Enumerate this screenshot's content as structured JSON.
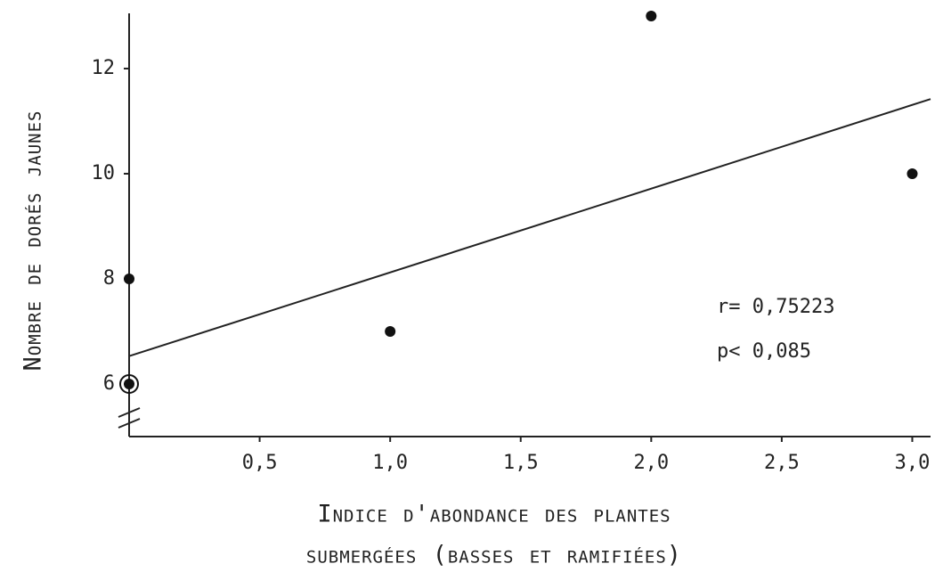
{
  "chart_data": {
    "type": "scatter",
    "x_label_lines": [
      "Indice d'abondance des plantes",
      "submergées (basses et ramifiées)"
    ],
    "y_label": "Nombre de dorés jaunes",
    "x": [
      0,
      0,
      1.0,
      2.0,
      3.0
    ],
    "values": [
      8,
      6,
      7,
      13,
      10
    ],
    "color": "#111111",
    "trend_line": {
      "x": [
        0,
        3.07
      ],
      "y": [
        6.53,
        11.42
      ]
    },
    "annotations": [
      "r= 0,75223",
      "p< 0,085"
    ],
    "xlim": [
      0,
      3.07
    ],
    "ylim": [
      5,
      13.05
    ],
    "xticks": [
      {
        "value": 0.5,
        "label": "0,5"
      },
      {
        "value": 1.0,
        "label": "1,0"
      },
      {
        "value": 1.5,
        "label": "1,5"
      },
      {
        "value": 2.0,
        "label": "2,0"
      },
      {
        "value": 2.5,
        "label": "2,5"
      },
      {
        "value": 3.0,
        "label": "3,0"
      }
    ],
    "yticks": [
      6,
      8,
      10,
      12
    ],
    "grid": false
  }
}
